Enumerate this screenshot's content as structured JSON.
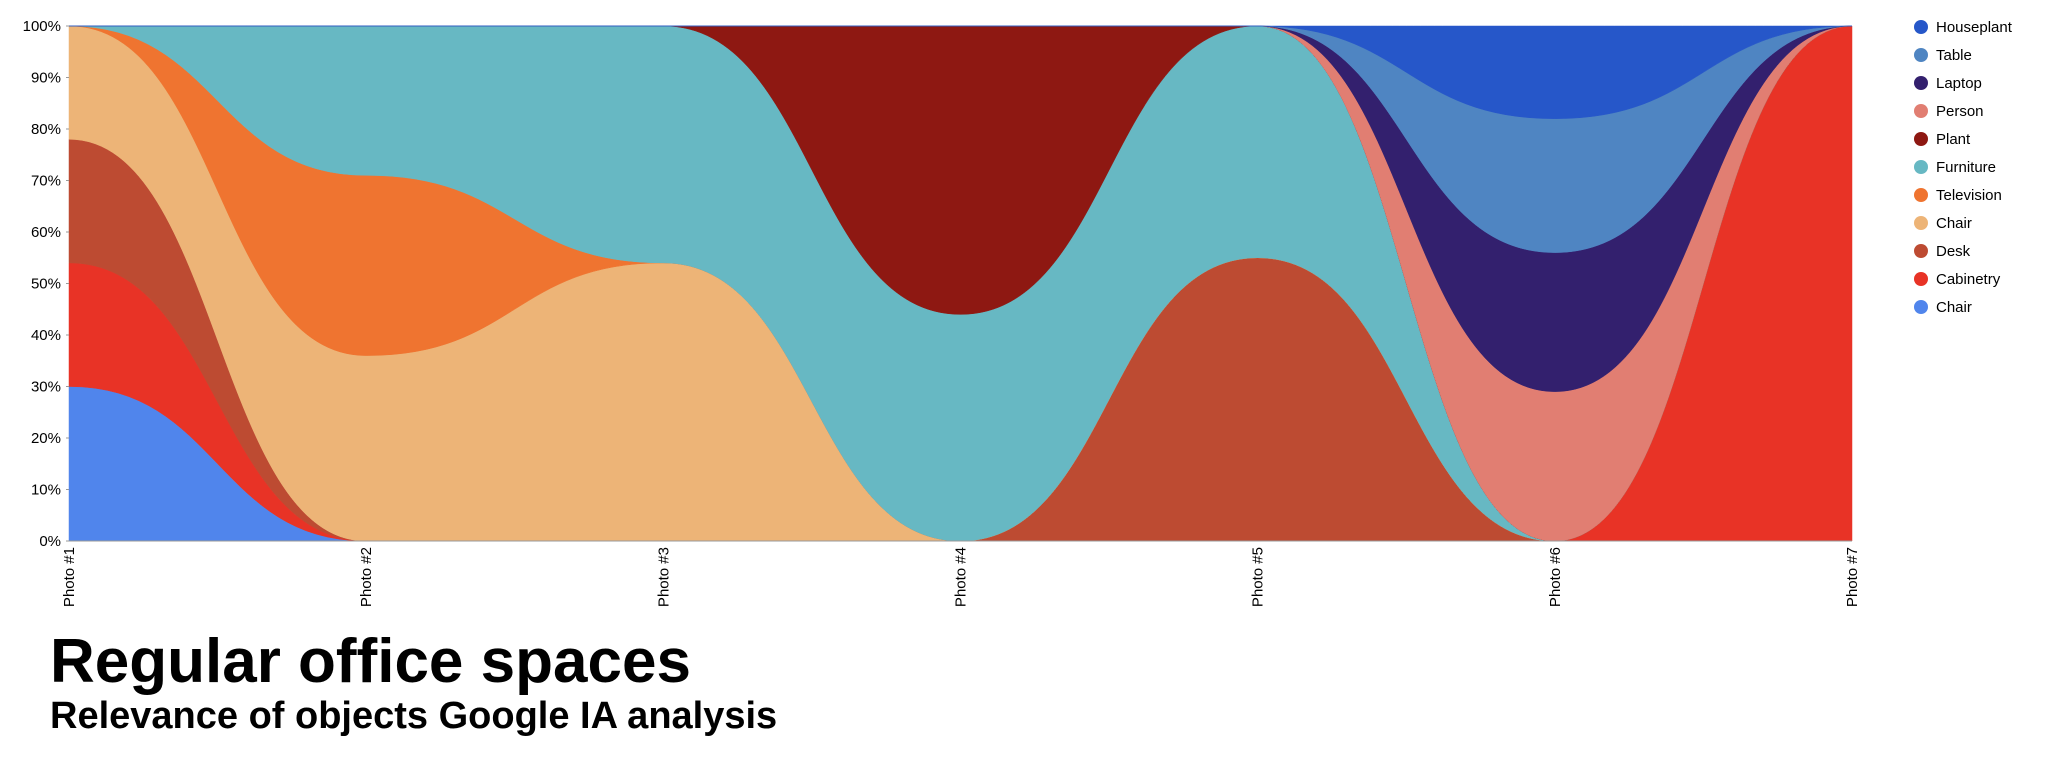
{
  "chart_data": {
    "type": "stacked_area_100",
    "title": "Regular office spaces",
    "subtitle": "Relevance of objects Google IA analysis",
    "categories": [
      "Photo #1",
      "Photo #2",
      "Photo #3",
      "Photo #4",
      "Photo #5",
      "Photo #6",
      "Photo #7"
    ],
    "ylim": [
      0,
      100
    ],
    "yticks": [
      {
        "value": 0,
        "label": "0%"
      },
      {
        "value": 10,
        "label": "10%"
      },
      {
        "value": 20,
        "label": "20%"
      },
      {
        "value": 30,
        "label": "30%"
      },
      {
        "value": 40,
        "label": "40%"
      },
      {
        "value": 50,
        "label": "50%"
      },
      {
        "value": 60,
        "label": "60%"
      },
      {
        "value": 70,
        "label": "70%"
      },
      {
        "value": 80,
        "label": "80%"
      },
      {
        "value": 90,
        "label": "90%"
      },
      {
        "value": 100,
        "label": "100%"
      }
    ],
    "series": [
      {
        "name": "Chair",
        "color": "#5085ec",
        "values": [
          30,
          0,
          0,
          0,
          0,
          0,
          0
        ]
      },
      {
        "name": "Cabinetry",
        "color": "#e83326",
        "values": [
          24,
          0,
          0,
          0,
          0,
          0,
          100
        ]
      },
      {
        "name": "Desk",
        "color": "#bd4b32",
        "values": [
          24,
          0,
          0,
          0,
          55,
          0,
          0
        ]
      },
      {
        "name": "Chair",
        "color": "#edb477",
        "values": [
          22,
          36,
          54,
          0,
          0,
          0,
          0
        ]
      },
      {
        "name": "Television",
        "color": "#ef7430",
        "values": [
          0,
          35,
          0,
          0,
          0,
          0,
          0
        ]
      },
      {
        "name": "Furniture",
        "color": "#67b8c3",
        "values": [
          0,
          29,
          46,
          44,
          45,
          0,
          0
        ]
      },
      {
        "name": "Plant",
        "color": "#8e1812",
        "values": [
          0,
          0,
          0,
          56,
          0,
          0,
          0
        ]
      },
      {
        "name": "Person",
        "color": "#e17e72",
        "values": [
          0,
          0,
          0,
          0,
          0,
          29,
          0
        ]
      },
      {
        "name": "Laptop",
        "color": "#33206e",
        "values": [
          0,
          0,
          0,
          0,
          0,
          27,
          0
        ]
      },
      {
        "name": "Table",
        "color": "#4f85c2",
        "values": [
          0,
          0,
          0,
          0,
          0,
          26,
          0
        ]
      },
      {
        "name": "Houseplant",
        "color": "#2657c9",
        "values": [
          0,
          0,
          0,
          0,
          0,
          18,
          0
        ]
      }
    ]
  }
}
